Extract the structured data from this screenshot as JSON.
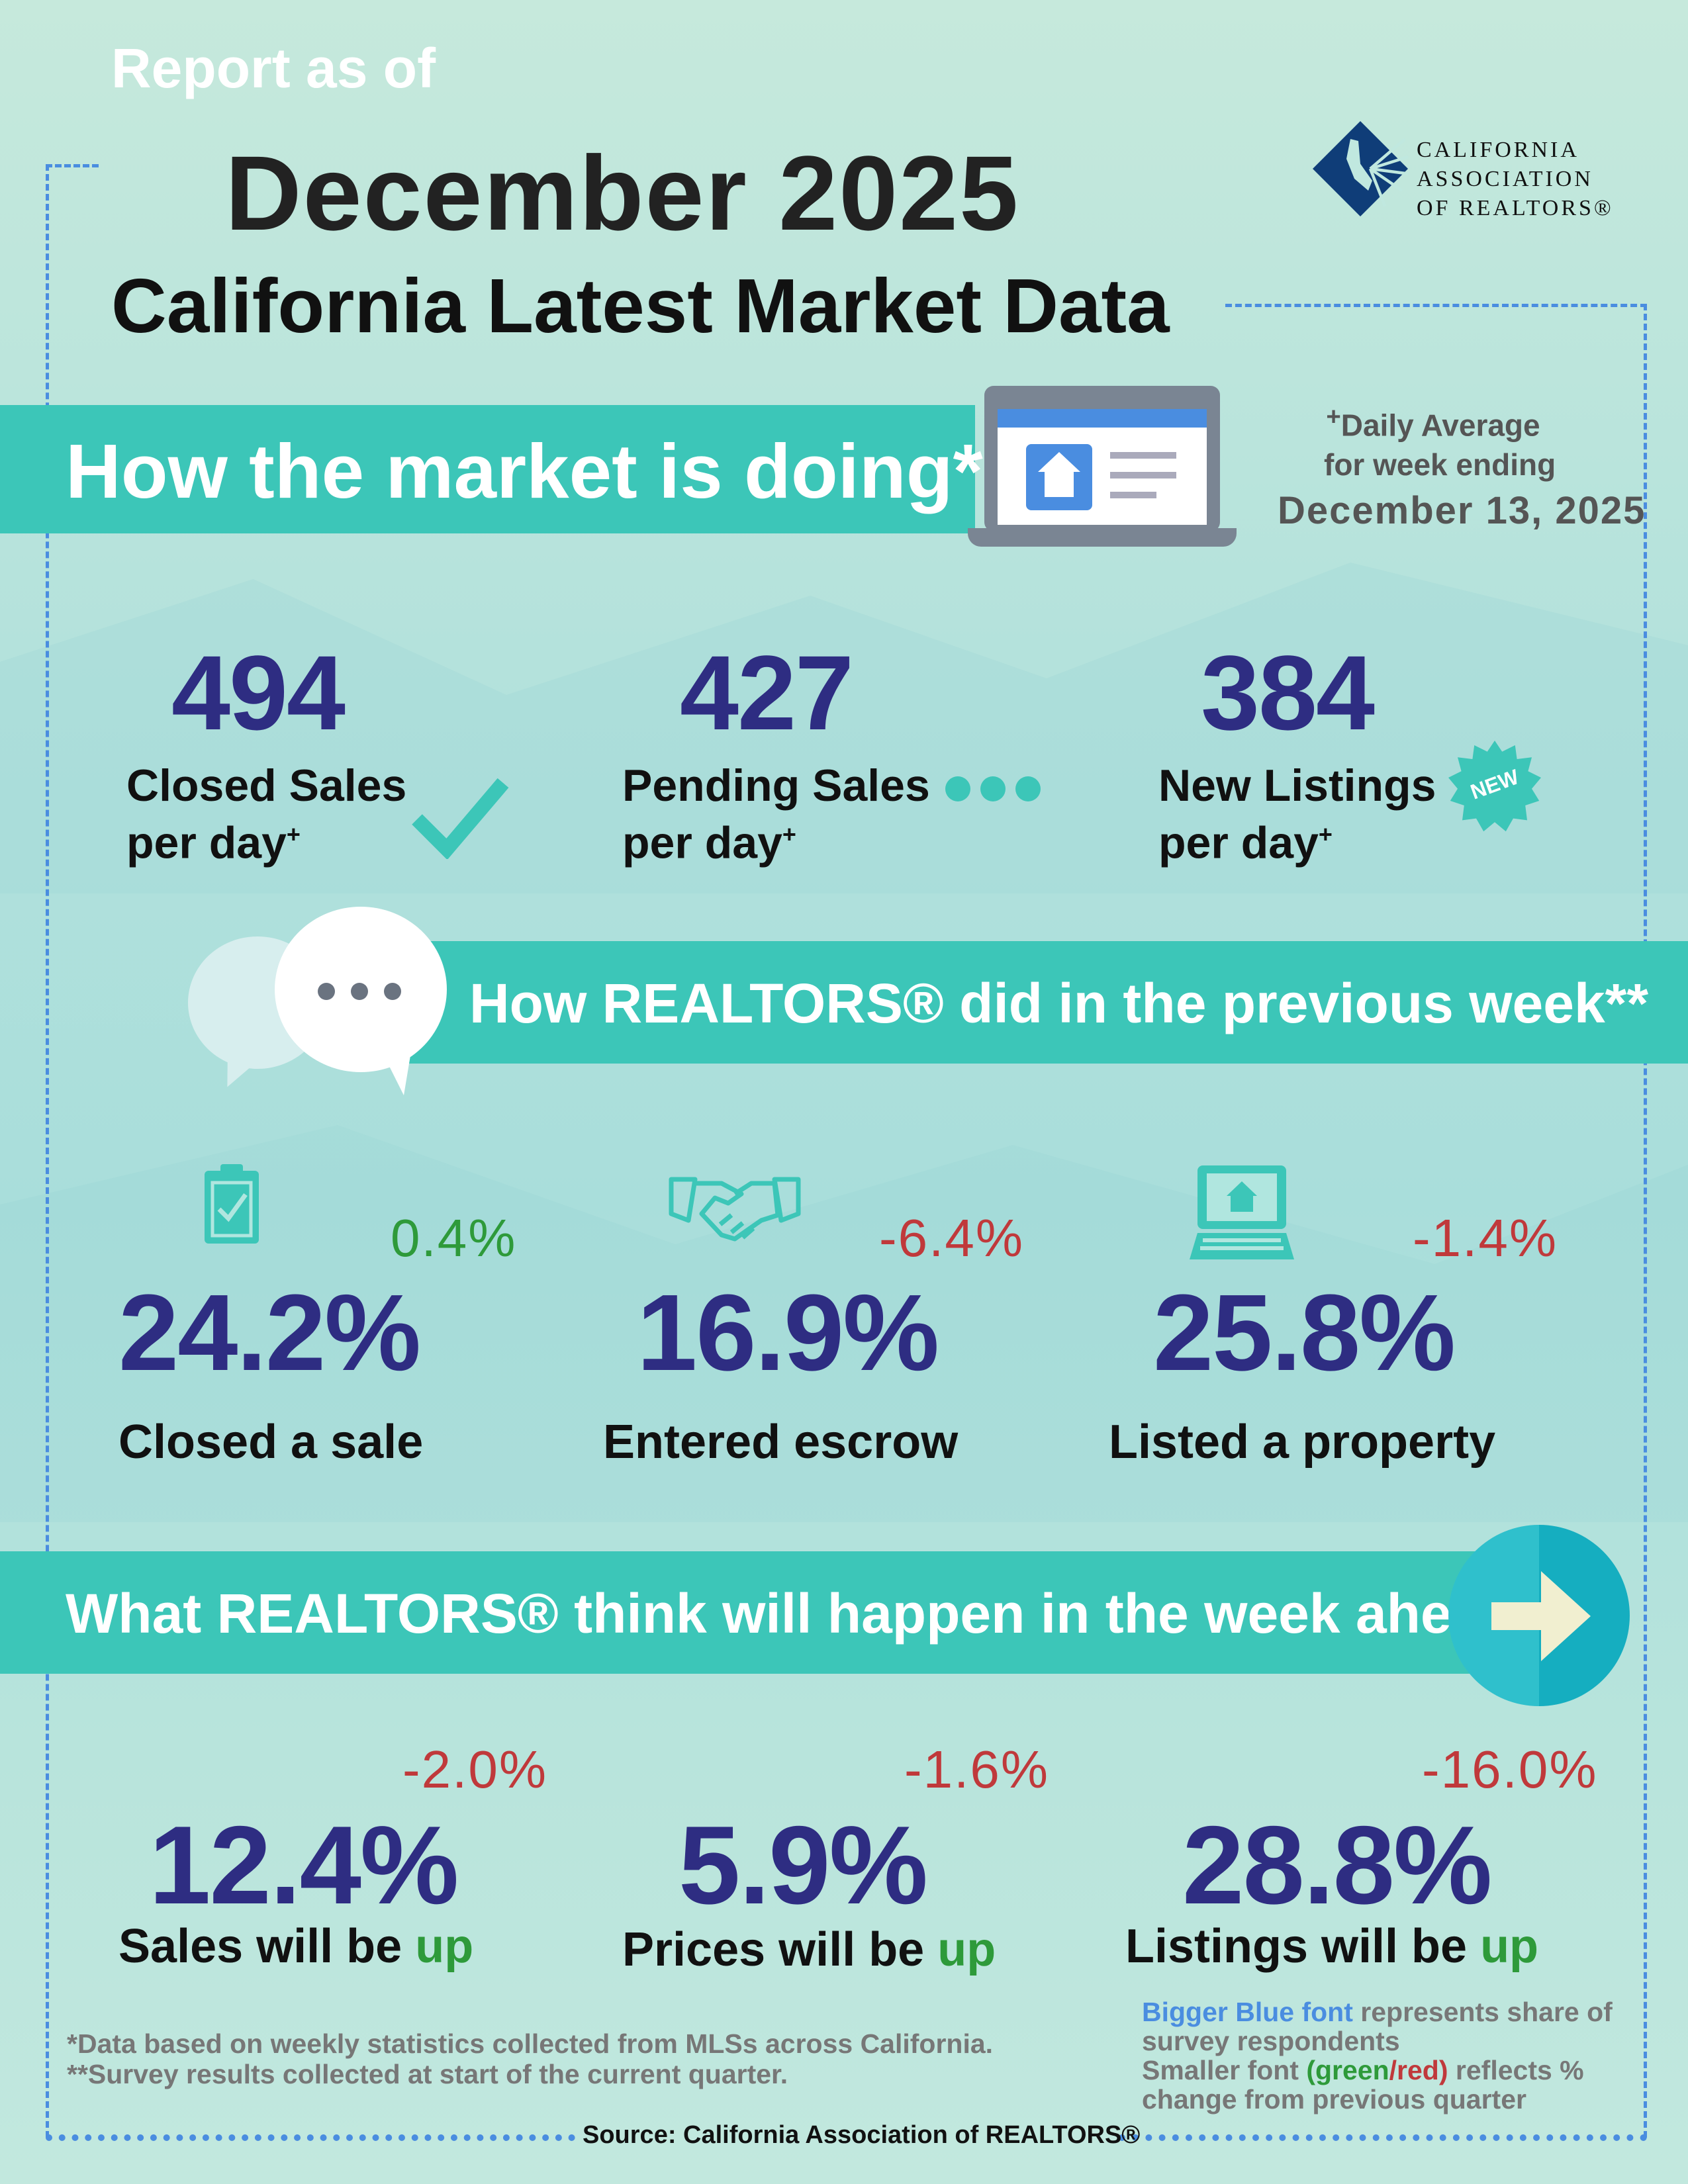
{
  "header": {
    "report_as_of": "Report as of",
    "month": "December 2025",
    "title": "California Latest Market Data",
    "logo_text": [
      "CALIFORNIA",
      "ASSOCIATION",
      "OF REALTORS®"
    ]
  },
  "market": {
    "banner": "How the market is doing*",
    "note_plus": "+",
    "note_line1": "Daily Average",
    "note_line2": "for week ending",
    "note_date": "December 13, 2025",
    "stats": [
      {
        "value": "494",
        "line1": "Closed Sales",
        "line2": "per day",
        "sup": "+",
        "icon": "checkmark-icon"
      },
      {
        "value": "427",
        "line1": "Pending Sales",
        "line2": "per day",
        "sup": "+",
        "icon": "ellipsis-dots-icon"
      },
      {
        "value": "384",
        "line1": "New Listings",
        "line2": "per day",
        "sup": "+",
        "icon": "new-badge-icon",
        "badge": "NEW"
      }
    ]
  },
  "previous_week": {
    "banner": "How REALTORS® did in the previous week**",
    "items": [
      {
        "share": "24.2%",
        "change": "0.4%",
        "direction": "up",
        "label": "Closed a sale",
        "icon": "clipboard-check-icon"
      },
      {
        "share": "16.9%",
        "change": "-6.4%",
        "direction": "down",
        "label": "Entered escrow",
        "icon": "handshake-icon"
      },
      {
        "share": "25.8%",
        "change": "-1.4%",
        "direction": "down",
        "label": "Listed a property",
        "icon": "laptop-house-icon"
      }
    ]
  },
  "week_ahead": {
    "banner": "What REALTORS® think will happen in the week ahead**",
    "items": [
      {
        "share": "12.4%",
        "change": "-2.0%",
        "label": "Sales will be",
        "label_up": "up"
      },
      {
        "share": "5.9%",
        "change": "-1.6%",
        "label": "Prices will be",
        "label_up": "up"
      },
      {
        "share": "28.8%",
        "change": "-16.0%",
        "label": "Listings will be",
        "label_up": "up"
      }
    ]
  },
  "footer": {
    "note1": "*Data based on weekly statistics collected from MLSs across California.",
    "note2": "**Survey results collected at start of the current quarter.",
    "legend_blue": "Bigger Blue font",
    "legend_rest1": " represents share of survey respondents",
    "legend_small": "Smaller font ",
    "legend_paren_open": "(",
    "legend_green": "green",
    "legend_slash": "/",
    "legend_red": "red",
    "legend_paren_close": ")",
    "legend_rest2": " reflects % change from previous quarter",
    "source": "Source: California Association of REALTORS®"
  },
  "colors": {
    "accent_teal": "#3cc6b8",
    "navy": "#2e2d82",
    "green": "#2e9a3a",
    "red": "#c0393b",
    "blue": "#4a8de0"
  }
}
